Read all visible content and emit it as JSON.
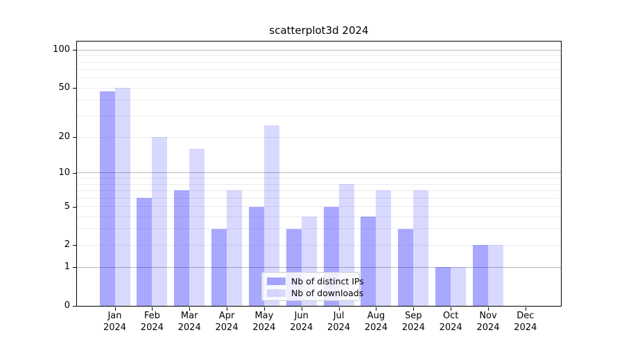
{
  "chart_data": {
    "type": "bar",
    "title": "scatterplot3d 2024",
    "categories": [
      "Jan",
      "Feb",
      "Mar",
      "Apr",
      "May",
      "Jun",
      "Jul",
      "Aug",
      "Sep",
      "Oct",
      "Nov",
      "Dec"
    ],
    "x_year_label": "2024",
    "series": [
      {
        "name": "Nb of distinct IPs",
        "color": "rgba(0,0,255,0.34)",
        "values": [
          47,
          6,
          7,
          3,
          5,
          3,
          5,
          4,
          3,
          1,
          2,
          0
        ]
      },
      {
        "name": "Nb of downloads",
        "color": "rgba(0,0,255,0.15)",
        "values": [
          50,
          20,
          16,
          7,
          25,
          4,
          8,
          7,
          7,
          1,
          2,
          0
        ]
      }
    ],
    "yscale": "log1p",
    "ylim": [
      0,
      117
    ],
    "yticks": [
      0,
      1,
      2,
      5,
      10,
      20,
      50,
      100
    ],
    "ytick_labels": [
      "0",
      "1",
      "2",
      "5",
      "10",
      "20",
      "50",
      "100"
    ],
    "major_gridlines": [
      1,
      10,
      100
    ],
    "minor_gridlines": [
      2,
      3,
      4,
      5,
      6,
      7,
      8,
      9,
      20,
      30,
      40,
      50,
      60,
      70,
      80,
      90
    ],
    "grid": true,
    "legend": {
      "position": "lower-center"
    }
  }
}
